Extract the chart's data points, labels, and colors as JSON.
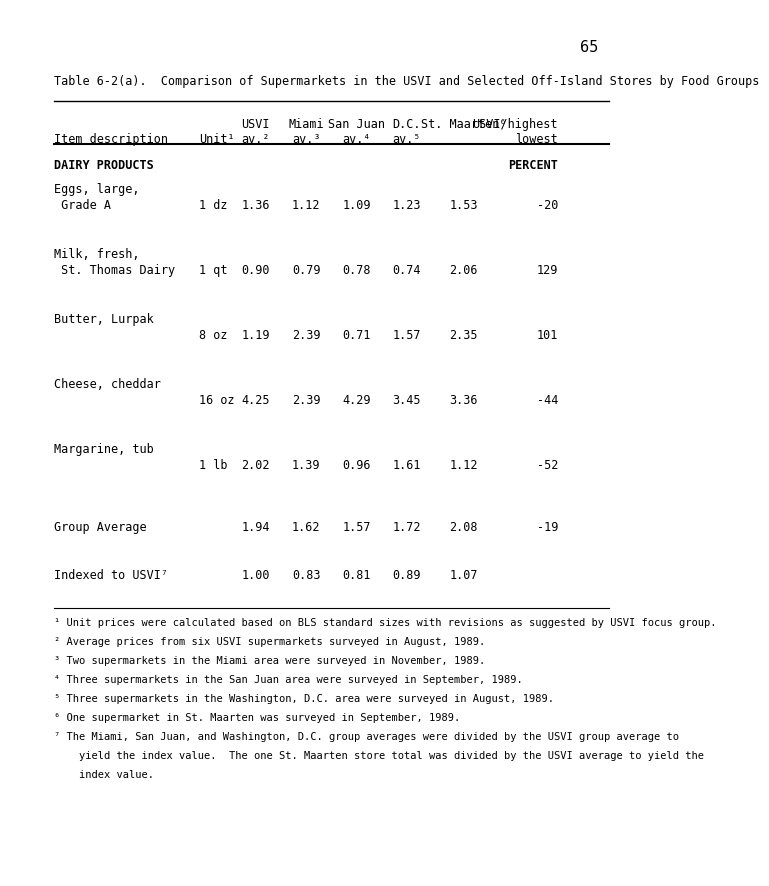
{
  "page_number": "65",
  "table_title": "Table 6-2(a).  Comparison of Supermarkets in the USVI and Selected Off-Island Stores by Food Groups",
  "columns": [
    "Item description",
    "Unit¹",
    "USVI\nav.²",
    "Miami\nav.³",
    "San Juan\nav.⁴",
    "D.C.\nav.⁵",
    "St. Maarten⁶",
    "USVI/highest\nlowest"
  ],
  "col_header_line1": [
    "",
    "",
    "USVI",
    "Miami",
    "San Juan",
    "D.C.",
    "St. Maarten⁶",
    "USVI/highest"
  ],
  "col_header_line2": [
    "Item description",
    "Unit¹",
    "av.²",
    "av.³",
    "av.⁴",
    "av.⁵",
    "",
    "lowest"
  ],
  "section_header": "DAIRY PRODUCTS",
  "percent_label": "PERCENT",
  "rows": [
    {
      "item": "Eggs, large,\n Grade A",
      "unit": "1 dz",
      "usvi": "1.36",
      "miami": "1.12",
      "sanjuan": "1.09",
      "dc": "1.23",
      "stmaarten": "1.53",
      "pct": "-20"
    },
    {
      "item": "Milk, fresh,\n St. Thomas Dairy",
      "unit": "1 qt",
      "usvi": "0.90",
      "miami": "0.79",
      "sanjuan": "0.78",
      "dc": "0.74",
      "stmaarten": "2.06",
      "pct": "129"
    },
    {
      "item": "Butter, Lurpak",
      "unit": "8 oz",
      "usvi": "1.19",
      "miami": "2.39",
      "sanjuan": "0.71",
      "dc": "1.57",
      "stmaarten": "2.35",
      "pct": "101"
    },
    {
      "item": "Cheese, cheddar",
      "unit": "16 oz",
      "usvi": "4.25",
      "miami": "2.39",
      "sanjuan": "4.29",
      "dc": "3.45",
      "stmaarten": "3.36",
      "pct": "-44"
    },
    {
      "item": "Margarine, tub",
      "unit": "1 lb",
      "usvi": "2.02",
      "miami": "1.39",
      "sanjuan": "0.96",
      "dc": "1.61",
      "stmaarten": "1.12",
      "pct": "-52"
    }
  ],
  "group_average": {
    "item": "Group Average",
    "unit": "",
    "usvi": "1.94",
    "miami": "1.62",
    "sanjuan": "1.57",
    "dc": "1.72",
    "stmaarten": "2.08",
    "pct": "-19"
  },
  "indexed": {
    "item": "Indexed to USVI⁷",
    "unit": "",
    "usvi": "1.00",
    "miami": "0.83",
    "sanjuan": "0.81",
    "dc": "0.89",
    "stmaarten": "1.07",
    "pct": ""
  },
  "footnotes": [
    "¹ Unit prices were calculated based on BLS standard sizes with revisions as suggested by USVI focus group.",
    "² Average prices from six USVI supermarkets surveyed in August, 1989.",
    "³ Two supermarkets in the Miami area were surveyed in November, 1989.",
    "⁴ Three supermarkets in the San Juan area were surveyed in September, 1989.",
    "⁵ Three supermarkets in the Washington, D.C. area were surveyed in August, 1989.",
    "⁶ One supermarket in St. Maarten was surveyed in September, 1989.",
    "⁷ The Miami, San Juan, and Washington, D.C. group averages were divided by the USVI group average to\n    yield the index value.  The one St. Maarten store total was divided by the USVI average to yield the\n    index value."
  ],
  "bg_color": "#ffffff",
  "text_color": "#000000",
  "font_size": 8.5,
  "title_font_size": 8.5,
  "footnote_font_size": 7.5
}
